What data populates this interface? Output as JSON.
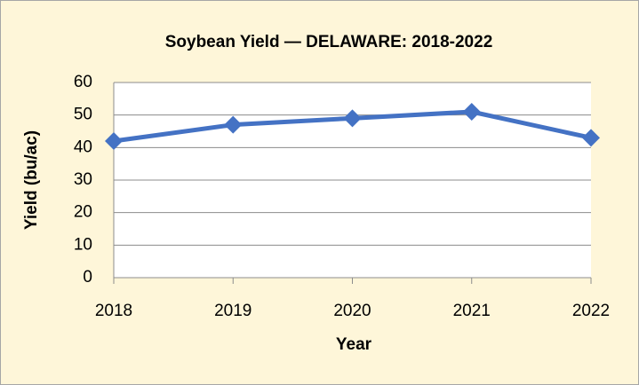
{
  "chart_data": {
    "type": "line",
    "title": "Soybean Yield — DELAWARE: 2018-2022",
    "x_label": "Year",
    "y_label": "Yield (bu/ac)",
    "categories": [
      "2018",
      "2019",
      "2020",
      "2021",
      "2022"
    ],
    "series": [
      {
        "name": "Yield",
        "color": "#4472c4",
        "values": [
          42,
          47,
          49,
          51,
          43
        ]
      }
    ],
    "ylim": [
      0,
      60
    ],
    "yticks": [
      0,
      10,
      20,
      30,
      40,
      50,
      60
    ],
    "grid": true
  }
}
